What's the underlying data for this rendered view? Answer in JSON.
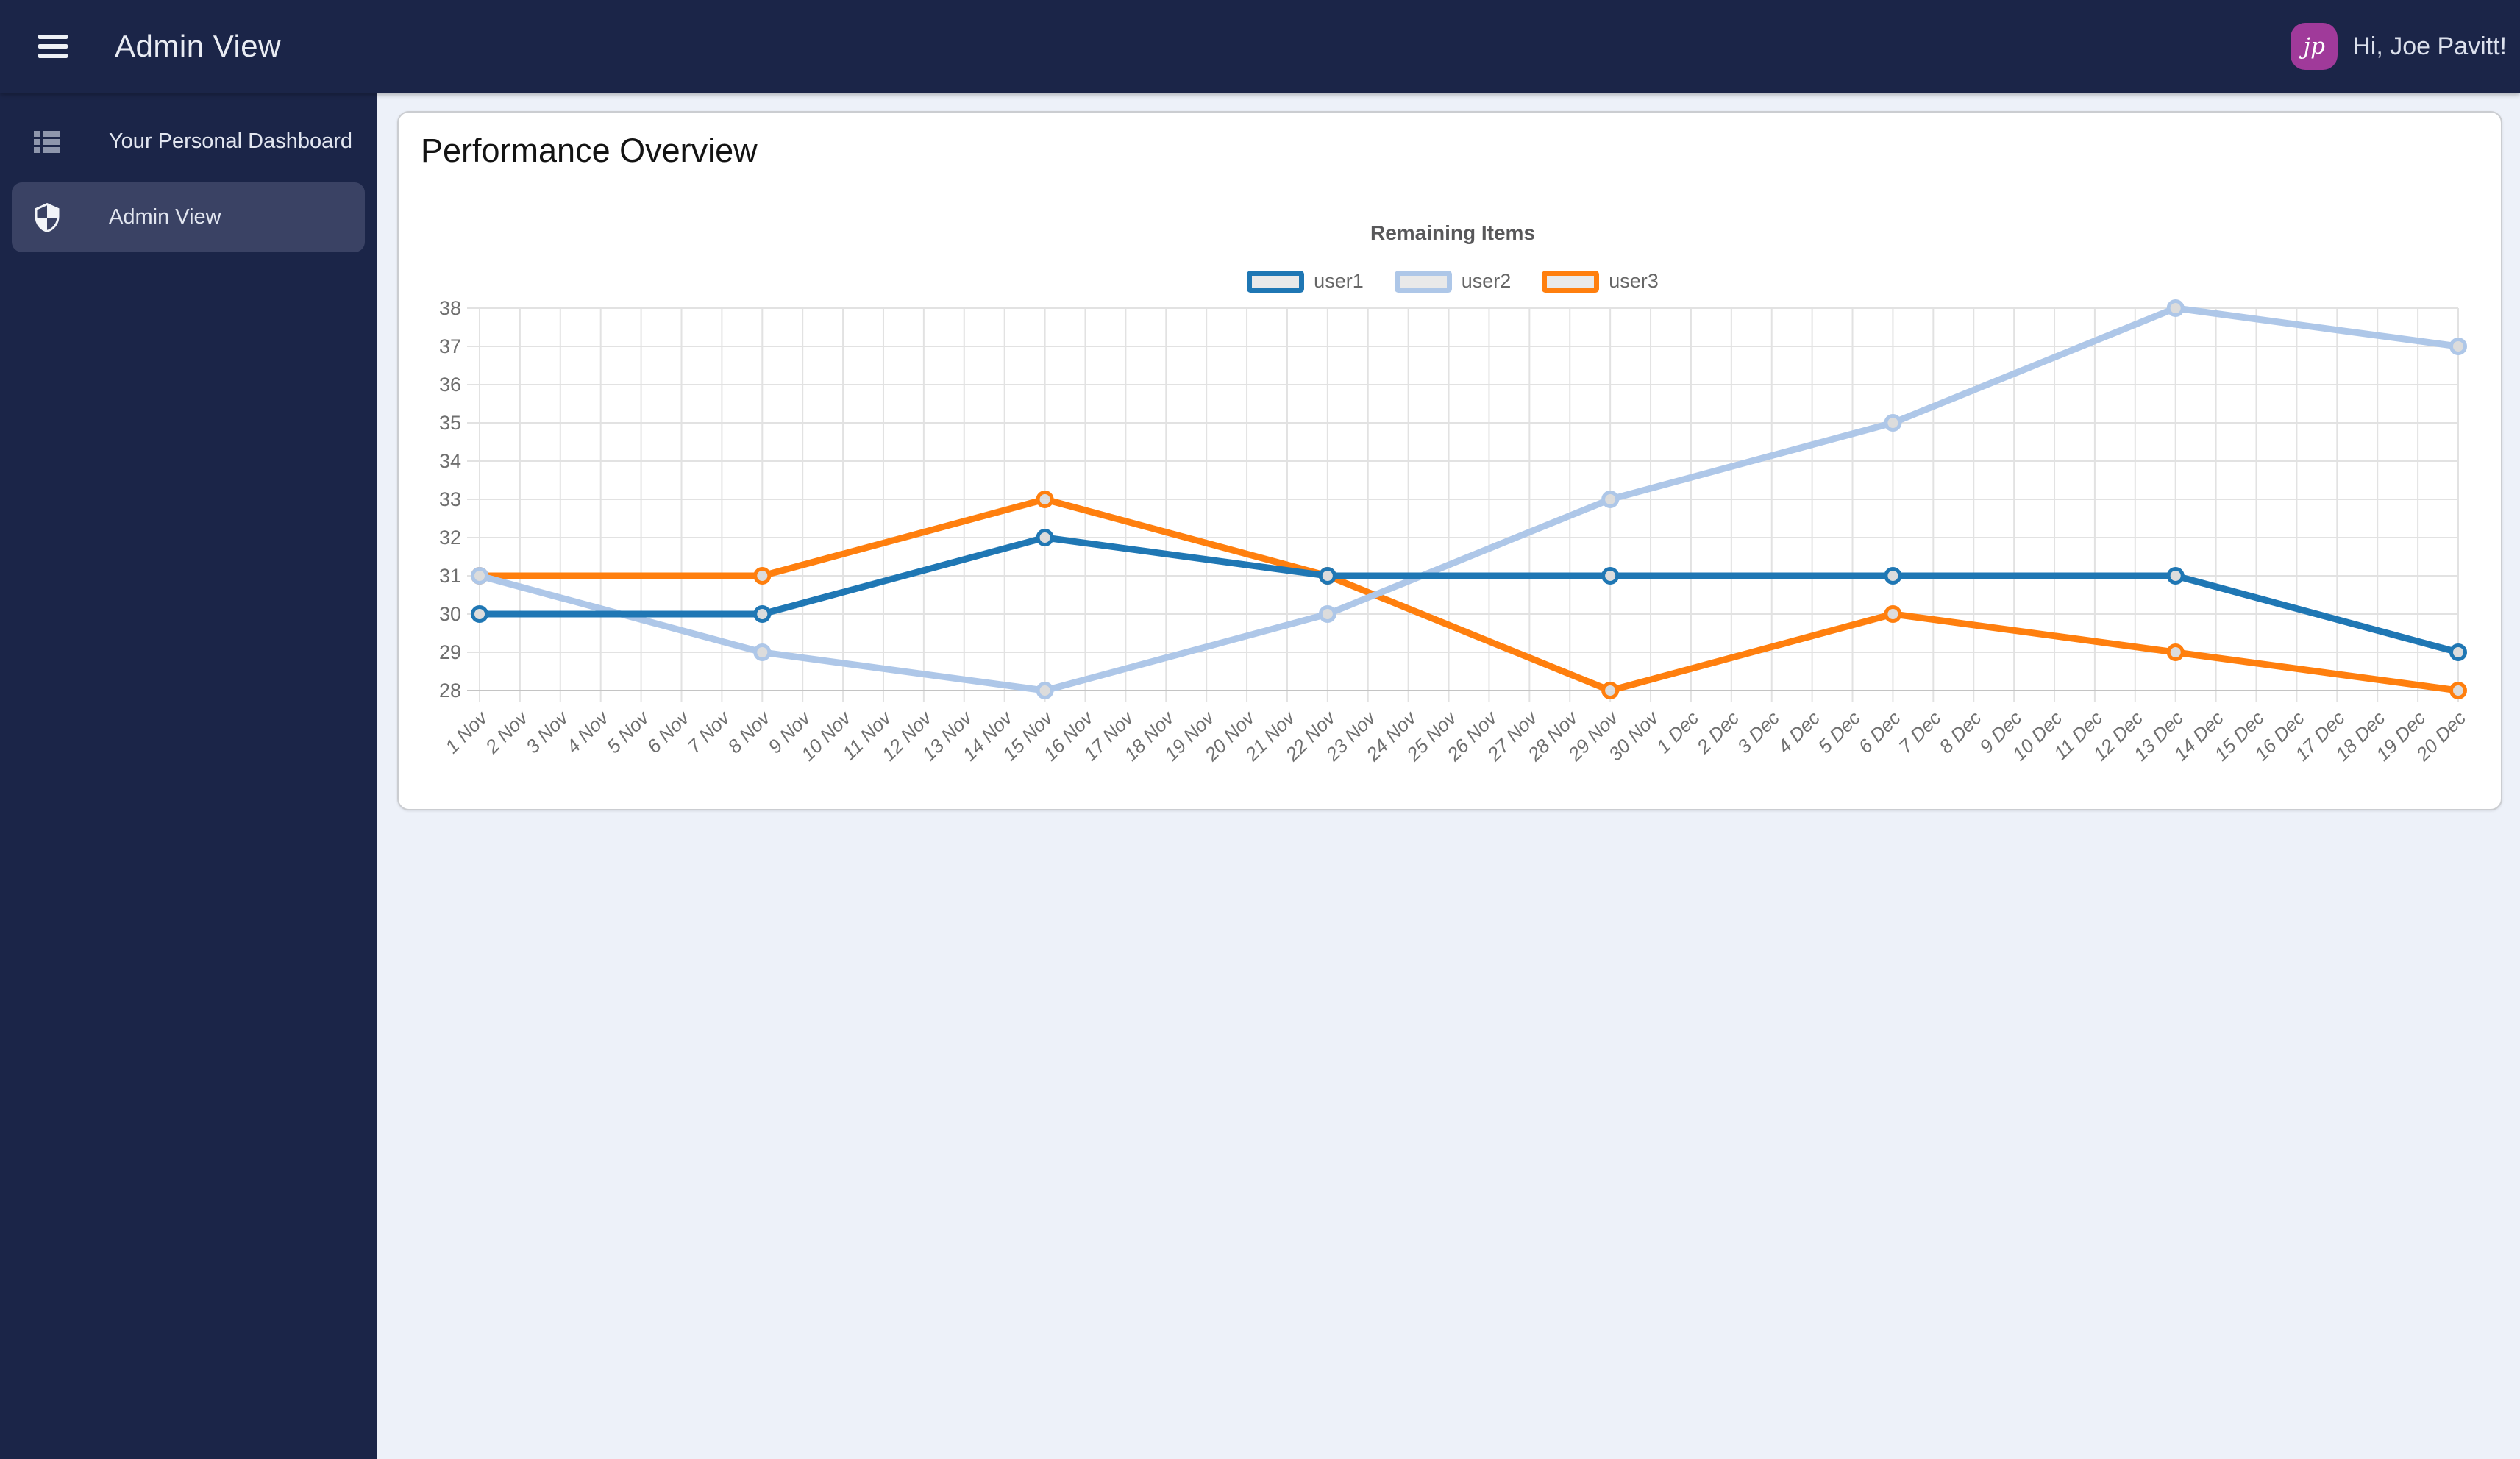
{
  "header": {
    "title": "Admin View",
    "greeting": "Hi, Joe Pavitt!",
    "avatar_initials": "jp",
    "menu_icon": "hamburger-menu"
  },
  "sidebar": {
    "items": [
      {
        "label": "Your Personal Dashboard",
        "icon": "view-list",
        "selected": false
      },
      {
        "label": "Admin View",
        "icon": "shield-checkered",
        "selected": true
      }
    ]
  },
  "main": {
    "card_title": "Performance Overview"
  },
  "colors": {
    "navbar_bg": "#1b2548",
    "sidebar_bg": "#1b2548",
    "selected_item_bg": "#3a4264",
    "content_bg": "#edf1f9",
    "card_bg": "#ffffff",
    "avatar_bg": "#a03a9a",
    "user1": "#1f77b4",
    "user2": "#aec7e8",
    "user3": "#ff7f0e"
  },
  "chart_data": {
    "type": "line",
    "title": "Remaining Items",
    "legend_position": "top",
    "grid": true,
    "ylim": [
      28,
      38
    ],
    "y_tick_step": 1,
    "x_labels": [
      "1 Nov",
      "2 Nov",
      "3 Nov",
      "4 Nov",
      "5 Nov",
      "6 Nov",
      "7 Nov",
      "8 Nov",
      "9 Nov",
      "10 Nov",
      "11 Nov",
      "12 Nov",
      "13 Nov",
      "14 Nov",
      "15 Nov",
      "16 Nov",
      "17 Nov",
      "18 Nov",
      "19 Nov",
      "20 Nov",
      "21 Nov",
      "22 Nov",
      "23 Nov",
      "24 Nov",
      "25 Nov",
      "26 Nov",
      "27 Nov",
      "28 Nov",
      "29 Nov",
      "30 Nov",
      "1 Dec",
      "2 Dec",
      "3 Dec",
      "4 Dec",
      "5 Dec",
      "6 Dec",
      "7 Dec",
      "8 Dec",
      "9 Dec",
      "10 Dec",
      "11 Dec",
      "12 Dec",
      "13 Dec",
      "14 Dec",
      "15 Dec",
      "16 Dec",
      "17 Dec",
      "18 Dec",
      "19 Dec",
      "20 Dec"
    ],
    "point_indices": [
      0,
      7,
      14,
      21,
      28,
      35,
      42,
      49
    ],
    "point_labels": [
      "1 Nov",
      "8 Nov",
      "15 Nov",
      "22 Nov",
      "29 Nov",
      "6 Dec",
      "13 Dec",
      "20 Dec"
    ],
    "series": [
      {
        "name": "user1",
        "color": "#1f77b4",
        "values": [
          30,
          30,
          32,
          31,
          31,
          31,
          31,
          29
        ]
      },
      {
        "name": "user2",
        "color": "#aec7e8",
        "values": [
          31,
          29,
          28,
          30,
          33,
          35,
          38,
          37
        ]
      },
      {
        "name": "user3",
        "color": "#ff7f0e",
        "values": [
          31,
          31,
          33,
          31,
          28,
          30,
          29,
          28
        ]
      }
    ],
    "marker_fill": "#dcdcdc",
    "grid_color": "#e2e2e2",
    "axis_line_color": "#c4c4c4",
    "tick_label_color": "#6f6f6f",
    "title_color": "#58585a"
  }
}
